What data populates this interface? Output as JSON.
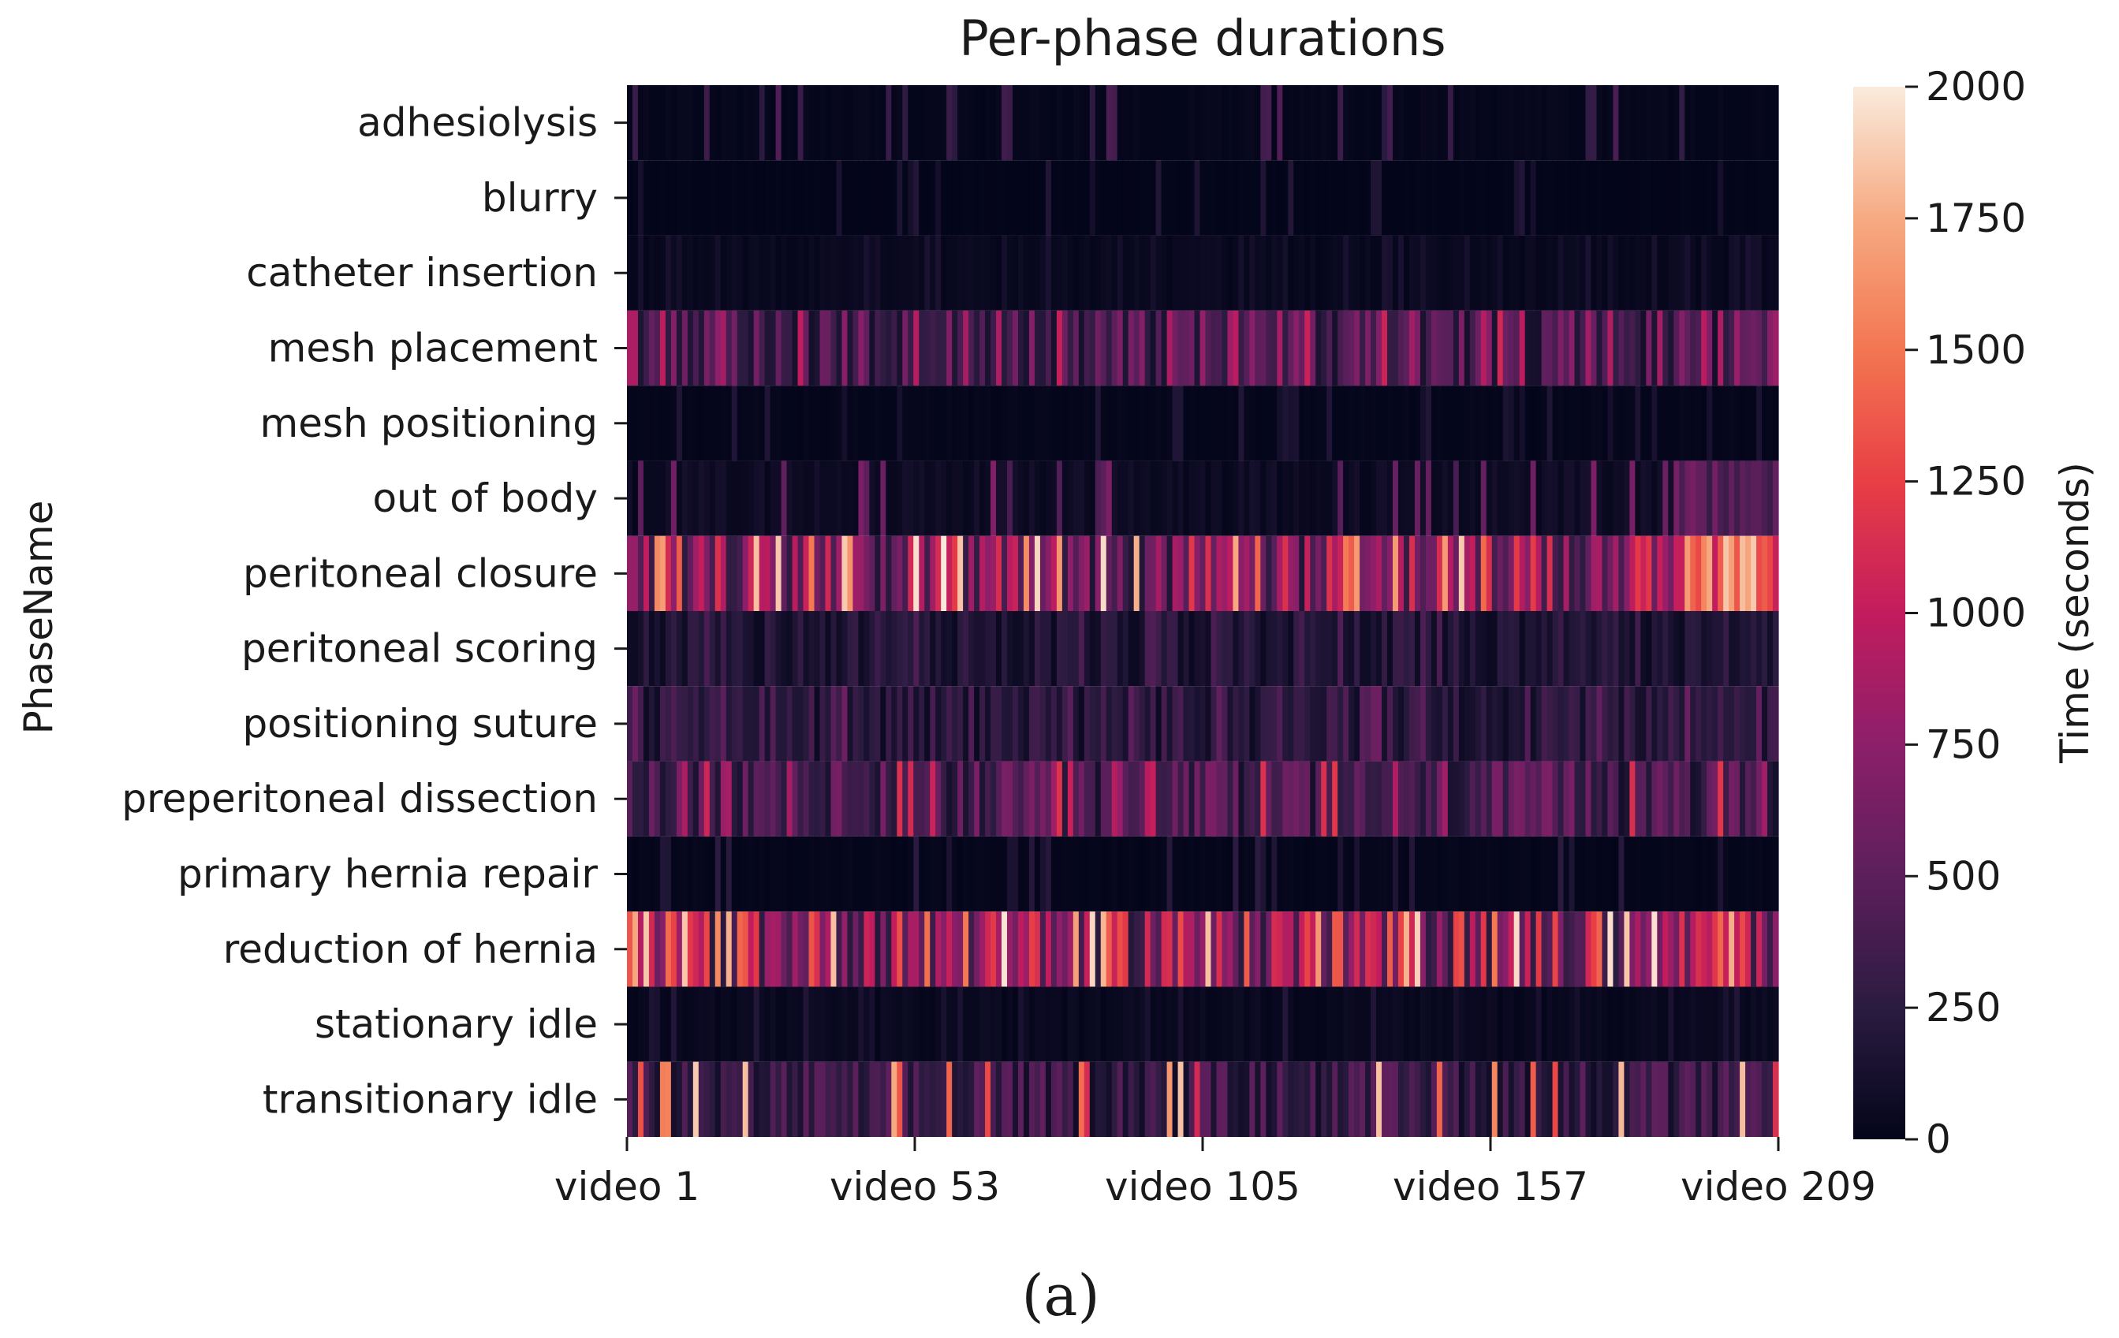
{
  "chart_data": {
    "type": "heatmap",
    "title": "Per-phase durations",
    "ylabel": "PhaseName",
    "xlabel": "",
    "rows": [
      "adhesiolysis",
      "blurry",
      "catheter insertion",
      "mesh placement",
      "mesh positioning",
      "out of body",
      "peritoneal closure",
      "peritoneal scoring",
      "positioning suture",
      "preperitoneal dissection",
      "primary hernia repair",
      "reduction of hernia",
      "stationary idle",
      "transitionary idle"
    ],
    "columns_first": 1,
    "columns_last": 209,
    "column_count": 209,
    "xticks": [
      {
        "index": 1,
        "label": "video 1"
      },
      {
        "index": 53,
        "label": "video 53"
      },
      {
        "index": 105,
        "label": "video 105"
      },
      {
        "index": 157,
        "label": "video 157"
      },
      {
        "index": 209,
        "label": "video 209"
      }
    ],
    "approx_row_levels_seconds": {
      "adhesiolysis": {
        "typical": 20,
        "peak": 450
      },
      "blurry": {
        "typical": 5,
        "peak": 200
      },
      "catheter insertion": {
        "typical": 40,
        "peak": 150
      },
      "mesh placement": {
        "typical": 420,
        "peak": 1100
      },
      "mesh positioning": {
        "typical": 15,
        "peak": 200
      },
      "out of body": {
        "typical": 70,
        "peak": 700
      },
      "peritoneal closure": {
        "typical": 700,
        "peak": 2000
      },
      "peritoneal scoring": {
        "typical": 180,
        "peak": 450
      },
      "positioning suture": {
        "typical": 230,
        "peak": 600
      },
      "preperitoneal dissection": {
        "typical": 380,
        "peak": 1200
      },
      "primary hernia repair": {
        "typical": 15,
        "peak": 250
      },
      "reduction of hernia": {
        "typical": 800,
        "peak": 2000
      },
      "stationary idle": {
        "typical": 40,
        "peak": 200
      },
      "transitionary idle": {
        "typical": 300,
        "peak": 1900
      }
    },
    "colorbar": {
      "label": "Time (seconds)",
      "min": 0,
      "max": 2000,
      "ticks": [
        "0",
        "250",
        "500",
        "750",
        "1000",
        "1250",
        "1500",
        "1750",
        "2000"
      ],
      "colormap": "rocket",
      "stops": [
        "#03051a",
        "#2b1b40",
        "#5c1f5c",
        "#8c1f6a",
        "#c21c5e",
        "#e83e45",
        "#f37651",
        "#f6aa82",
        "#faebdd"
      ]
    },
    "grid": false,
    "legend": "colorbar-right"
  },
  "caption": "(a)"
}
